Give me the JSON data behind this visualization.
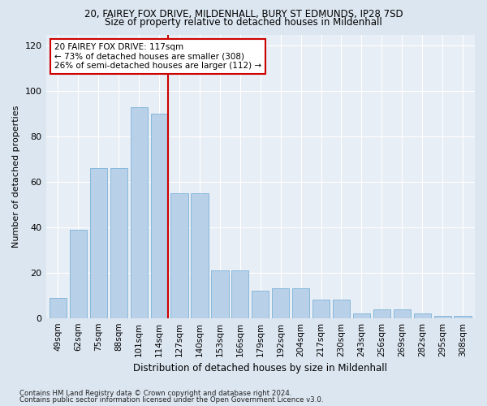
{
  "title_line1": "20, FAIREY FOX DRIVE, MILDENHALL, BURY ST EDMUNDS, IP28 7SD",
  "title_line2": "Size of property relative to detached houses in Mildenhall",
  "xlabel": "Distribution of detached houses by size in Mildenhall",
  "ylabel": "Number of detached properties",
  "categories": [
    "49sqm",
    "62sqm",
    "75sqm",
    "88sqm",
    "101sqm",
    "114sqm",
    "127sqm",
    "140sqm",
    "153sqm",
    "166sqm",
    "179sqm",
    "192sqm",
    "204sqm",
    "217sqm",
    "230sqm",
    "243sqm",
    "256sqm",
    "269sqm",
    "282sqm",
    "295sqm",
    "308sqm"
  ],
  "values": [
    9,
    39,
    66,
    66,
    93,
    90,
    55,
    55,
    21,
    21,
    12,
    13,
    13,
    8,
    8,
    2,
    4,
    4,
    2,
    1,
    1
  ],
  "bar_color": "#b8d0e8",
  "bar_edge_color": "#6aaad4",
  "highlight_idx": 5,
  "highlight_color": "#cc0000",
  "annotation_text": "20 FAIREY FOX DRIVE: 117sqm\n← 73% of detached houses are smaller (308)\n26% of semi-detached houses are larger (112) →",
  "annotation_box_color": "#ffffff",
  "annotation_box_edge": "#cc0000",
  "ylim": [
    0,
    125
  ],
  "yticks": [
    0,
    20,
    40,
    60,
    80,
    100,
    120
  ],
  "footer_line1": "Contains HM Land Registry data © Crown copyright and database right 2024.",
  "footer_line2": "Contains public sector information licensed under the Open Government Licence v3.0.",
  "bg_color": "#dce6f0",
  "plot_bg_color": "#e8eef5"
}
